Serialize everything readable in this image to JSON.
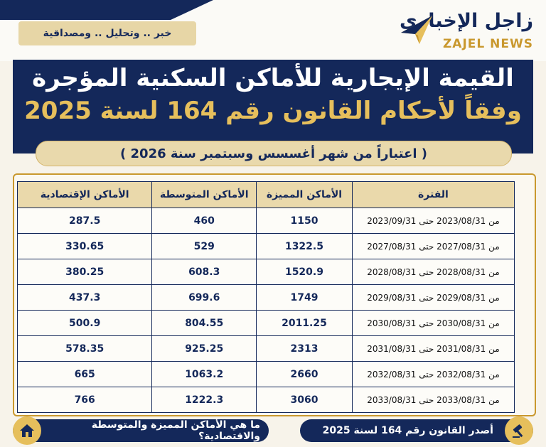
{
  "tagline": "خبر .. وتحليل .. ومصداقية",
  "logo": {
    "ar": "زاجل الإخباري",
    "en": "ZAJEL NEWS"
  },
  "header": {
    "title_line1": "القيمة الإيجارية للأماكن السكنية المؤجرة",
    "title_line2": "وفقاً لأحكام القانون رقم 164 لسنة 2025",
    "subtitle": "( اعتباراً من شهر أغسسس وسبتمبر سنة 2026 )"
  },
  "table": {
    "headers": {
      "period": "الفترة",
      "premium": "الأماكن المميزة",
      "medium": "الأماكن المتوسطة",
      "economic": "الأماكن الإقتصادية"
    },
    "rows": [
      {
        "period": "من 2023/08/31 حتى 2023/09/31",
        "premium": "1150",
        "medium": "460",
        "economic": "287.5"
      },
      {
        "period": "من 2027/08/31 حتى 2027/08/31",
        "premium": "1322.5",
        "medium": "529",
        "economic": "330.65"
      },
      {
        "period": "من 2028/08/31 حتى 2028/08/31",
        "premium": "1520.9",
        "medium": "608.3",
        "economic": "380.25"
      },
      {
        "period": "من 2029/08/31 حتى 2029/08/31",
        "premium": "1749",
        "medium": "699.6",
        "economic": "437.3"
      },
      {
        "period": "من 2030/08/31 حتى 2030/08/31",
        "premium": "2011.25",
        "medium": "804.55",
        "economic": "500.9"
      },
      {
        "period": "من 2031/08/31 حتى 2031/08/31",
        "premium": "2313",
        "medium": "925.25",
        "economic": "578.35"
      },
      {
        "period": "من 2032/08/31 حتى 2032/08/31",
        "premium": "2660",
        "medium": "1063.2",
        "economic": "665"
      },
      {
        "period": "من 2033/08/31 حتى 2033/08/31",
        "premium": "3060",
        "medium": "1222.3",
        "economic": "766"
      }
    ]
  },
  "footer": {
    "left_label": "ما هي الأماكن المميزة والمتوسطة والاقتصادية؟",
    "right_label": "أصدر القانون رقم 164 لسنة 2025",
    "left_icon": "house-icon",
    "right_icon": "gavel-icon"
  },
  "colors": {
    "navy": "#14285a",
    "gold": "#e6bf5c",
    "cream": "#ead9ab"
  }
}
